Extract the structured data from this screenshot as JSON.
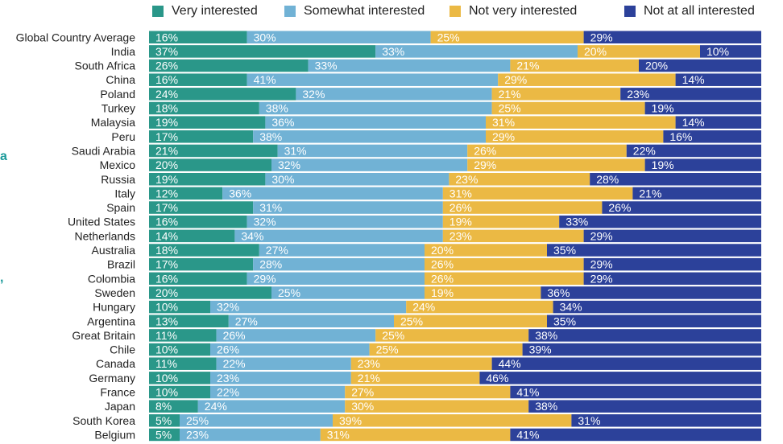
{
  "colors": {
    "very": "#2a9789",
    "somewhat": "#71b2d5",
    "notvery": "#ebb944",
    "notatall": "#2c419a",
    "accent": "#1b9a9a"
  },
  "legend": [
    {
      "name": "Very interested",
      "color": "#2a9789"
    },
    {
      "name": "Somewhat interested",
      "color": "#71b2d5"
    },
    {
      "name": "Not very interested",
      "color": "#ebb944"
    },
    {
      "name": "Not at all interested",
      "color": "#2c419a"
    }
  ],
  "chart_data": {
    "type": "bar",
    "orientation": "horizontal",
    "stacked": true,
    "normalized": true,
    "value_suffix": "%",
    "legend_position": "top",
    "categories": [
      "Global Country Average",
      "India",
      "South Africa",
      "China",
      "Poland",
      "Turkey",
      "Malaysia",
      "Peru",
      "Saudi Arabia",
      "Mexico",
      "Russia",
      "Italy",
      "Spain",
      "United States",
      "Netherlands",
      "Australia",
      "Brazil",
      "Colombia",
      "Sweden",
      "Hungary",
      "Argentina",
      "Great Britain",
      "Chile",
      "Canada",
      "Germany",
      "France",
      "Japan",
      "South Korea",
      "Belgium"
    ],
    "series": [
      {
        "name": "Very interested",
        "values": [
          16,
          37,
          26,
          16,
          24,
          18,
          19,
          17,
          21,
          20,
          19,
          12,
          17,
          16,
          14,
          18,
          17,
          16,
          20,
          10,
          13,
          11,
          10,
          11,
          10,
          10,
          8,
          5,
          5
        ]
      },
      {
        "name": "Somewhat interested",
        "values": [
          30,
          33,
          33,
          41,
          32,
          38,
          36,
          38,
          31,
          32,
          30,
          36,
          31,
          32,
          34,
          27,
          28,
          29,
          25,
          32,
          27,
          26,
          26,
          22,
          23,
          22,
          24,
          25,
          23
        ]
      },
      {
        "name": "Not very interested",
        "values": [
          25,
          20,
          21,
          29,
          21,
          25,
          31,
          29,
          26,
          29,
          23,
          31,
          26,
          19,
          23,
          20,
          26,
          26,
          19,
          24,
          25,
          25,
          25,
          23,
          21,
          27,
          30,
          39,
          31
        ]
      },
      {
        "name": "Not at all interested",
        "values": [
          29,
          10,
          20,
          14,
          23,
          19,
          14,
          16,
          22,
          19,
          28,
          21,
          26,
          33,
          29,
          35,
          29,
          29,
          36,
          34,
          35,
          38,
          39,
          44,
          46,
          41,
          38,
          31,
          41
        ]
      }
    ]
  }
}
